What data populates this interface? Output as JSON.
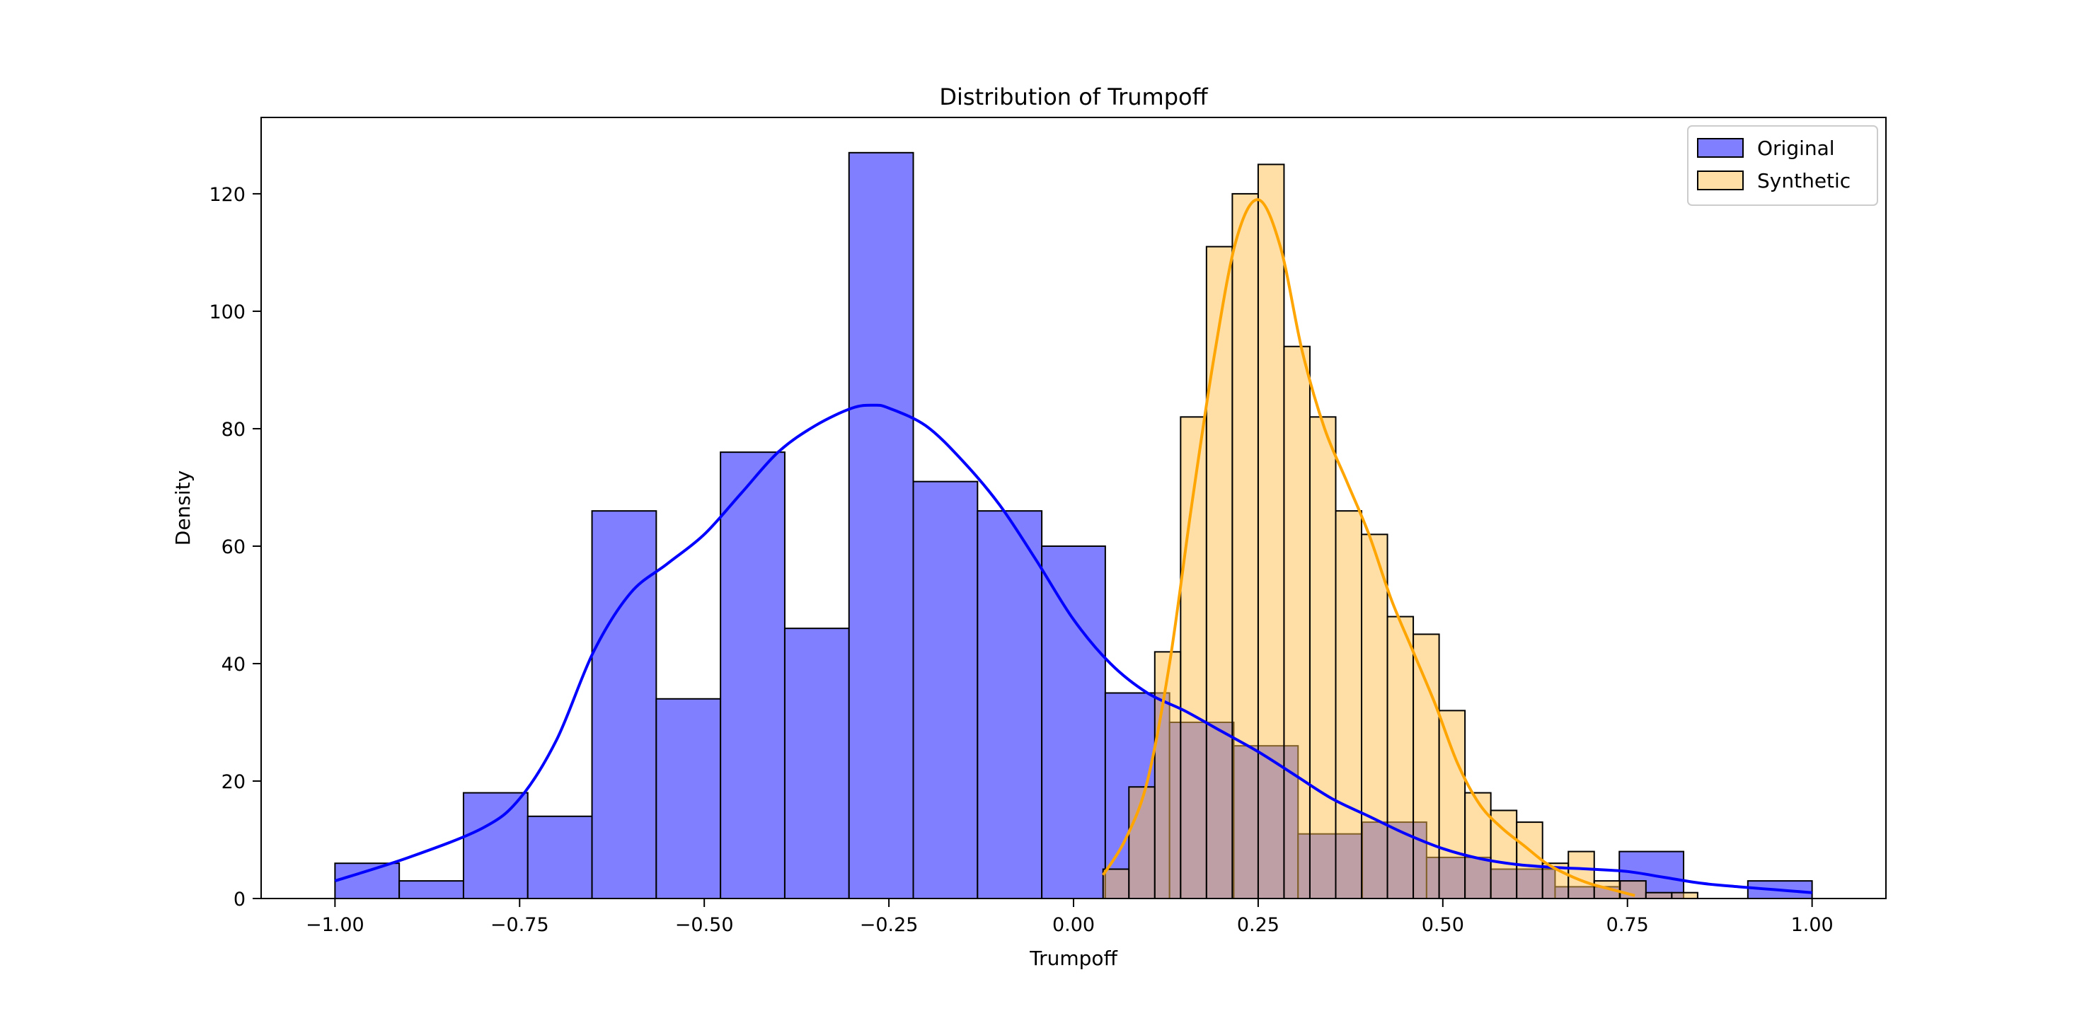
{
  "chart_data": {
    "type": "histogram",
    "title": "Distribution of Trumpoff",
    "xlabel": "Trumpoff",
    "ylabel": "Density",
    "xlim": [
      -1.1,
      1.1
    ],
    "ylim": [
      0,
      133
    ],
    "xticks": [
      -1.0,
      -0.75,
      -0.5,
      -0.25,
      0.0,
      0.25,
      0.5,
      0.75,
      1.0
    ],
    "xtick_labels": [
      "−1.00",
      "−0.75",
      "−0.50",
      "−0.25",
      "0.00",
      "0.25",
      "0.50",
      "0.75",
      "1.00"
    ],
    "yticks": [
      0,
      20,
      40,
      60,
      80,
      100,
      120
    ],
    "ytick_labels": [
      "0",
      "20",
      "40",
      "60",
      "80",
      "100",
      "120"
    ],
    "grid": false,
    "legend": {
      "placement": "upper right"
    },
    "series": [
      {
        "name": "Original",
        "color": "#7f7fff",
        "kde_color": "#0000ff",
        "bin_edges": [
          -1.0,
          -0.913,
          -0.826,
          -0.739,
          -0.652,
          -0.565,
          -0.478,
          -0.391,
          -0.304,
          -0.217,
          -0.13,
          -0.043,
          0.043,
          0.13,
          0.217,
          0.304,
          0.391,
          0.478,
          0.565,
          0.652,
          0.739,
          0.826,
          0.913,
          1.0
        ],
        "counts": [
          6,
          3,
          18,
          14,
          66,
          34,
          76,
          46,
          127,
          71,
          66,
          60,
          35,
          30,
          26,
          11,
          13,
          7,
          5,
          2,
          8,
          0,
          3
        ],
        "kde": {
          "x": [
            -1.0,
            -0.9,
            -0.8,
            -0.75,
            -0.7,
            -0.65,
            -0.6,
            -0.55,
            -0.5,
            -0.45,
            -0.4,
            -0.35,
            -0.3,
            -0.27,
            -0.25,
            -0.2,
            -0.15,
            -0.1,
            -0.05,
            0.0,
            0.05,
            0.1,
            0.15,
            0.2,
            0.25,
            0.3,
            0.35,
            0.4,
            0.45,
            0.5,
            0.55,
            0.6,
            0.65,
            0.7,
            0.75,
            0.8,
            0.85,
            0.9,
            0.95,
            1.0
          ],
          "y": [
            3,
            7,
            12,
            17,
            27,
            42,
            52,
            57,
            62,
            69,
            76,
            80.5,
            83.5,
            84,
            83.5,
            80.5,
            74.5,
            67,
            57.5,
            47.5,
            40,
            35,
            32,
            28.5,
            25,
            21,
            17,
            14,
            11,
            8.5,
            6.8,
            5.8,
            5.3,
            5,
            4.6,
            3.6,
            2.6,
            2,
            1.5,
            1
          ]
        }
      },
      {
        "name": "Synthetic",
        "color": "#ffc04d",
        "kde_color": "#ffa500",
        "bin_edges": [
          0.04,
          0.075,
          0.11,
          0.145,
          0.18,
          0.215,
          0.25,
          0.285,
          0.32,
          0.355,
          0.39,
          0.425,
          0.46,
          0.495,
          0.53,
          0.565,
          0.6,
          0.635,
          0.67,
          0.705,
          0.74,
          0.775,
          0.81,
          0.845
        ],
        "counts": [
          5,
          19,
          42,
          82,
          111,
          120,
          125,
          94,
          82,
          66,
          62,
          48,
          45,
          32,
          18,
          15,
          13,
          6,
          8,
          3,
          3,
          1,
          1
        ],
        "kde": {
          "x": [
            0.04,
            0.07,
            0.1,
            0.13,
            0.16,
            0.19,
            0.22,
            0.25,
            0.28,
            0.31,
            0.34,
            0.37,
            0.4,
            0.43,
            0.46,
            0.49,
            0.52,
            0.55,
            0.58,
            0.61,
            0.64,
            0.67,
            0.7,
            0.73,
            0.76
          ],
          "y": [
            4,
            10,
            20,
            40,
            67,
            92,
            112,
            119,
            111,
            93,
            80,
            71,
            62,
            51,
            42,
            33,
            23,
            16,
            12,
            9,
            6,
            4,
            2.5,
            1.5,
            0.5
          ]
        }
      }
    ]
  }
}
